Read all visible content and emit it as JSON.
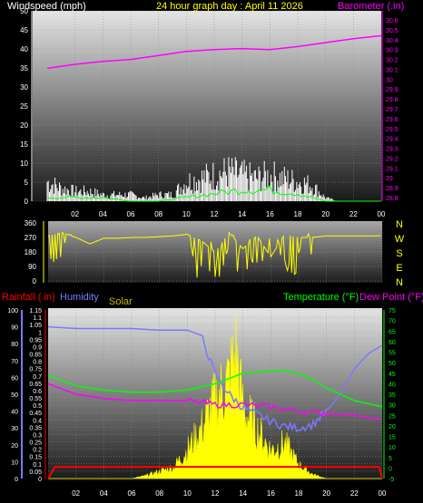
{
  "header": {
    "left_title": "Windspeed (mph)",
    "center_title": "24 hour graph day : April 11 2026",
    "right_title": "Barometer (.in)"
  },
  "colors": {
    "windspeed": "#ffffff",
    "gust": "#cccccc",
    "average": "#00ff00",
    "barometer": "#ff00ff",
    "wind_direction": "#ffff00",
    "rainfall": "#ff0000",
    "humidity": "#7a7aff",
    "solar": "#ffff00",
    "temperature": "#00ff00",
    "dew_point": "#ff00ff",
    "left_axis_humidity": "#7a7aff",
    "rain_axis": "#ff0000",
    "temp_axis": "#00ff00"
  },
  "chart_data": [
    {
      "type": "line",
      "name": "wind-barometer",
      "x_ticks": [
        "02",
        "04",
        "06",
        "08",
        "10",
        "12",
        "14",
        "16",
        "18",
        "20",
        "22",
        "00"
      ],
      "y_left_ticks": [
        "0",
        "5",
        "10",
        "15",
        "20",
        "25",
        "30",
        "35",
        "40",
        "45",
        "50"
      ],
      "y_left_lim": [
        0,
        50
      ],
      "y_right_ticks": [
        "28.8",
        "28.9",
        "29",
        "29.1",
        "29.2",
        "29.3",
        "29.4",
        "29.5",
        "29.6",
        "29.7",
        "29.8",
        "29.9",
        "30",
        "30.1",
        "30.2",
        "30.3",
        "30.4",
        "30.5",
        "30.6"
      ],
      "y_right_lim": [
        28.8,
        30.6
      ],
      "barometer": {
        "x": [
          0,
          2,
          4,
          6,
          8,
          10,
          12,
          14,
          16,
          18,
          20,
          22,
          24
        ],
        "values": [
          30.11,
          30.15,
          30.18,
          30.2,
          30.24,
          30.28,
          30.3,
          30.31,
          30.3,
          30.33,
          30.37,
          30.41,
          30.44
        ]
      },
      "windspeed": {
        "x": [
          0,
          1,
          2,
          3,
          4,
          5,
          6,
          7,
          8,
          9,
          10,
          11,
          12,
          13,
          14,
          15,
          16,
          17,
          18,
          19,
          20,
          21,
          22,
          23,
          24
        ],
        "values": [
          6,
          4,
          3,
          3,
          2,
          2,
          2,
          1,
          2,
          2,
          6,
          7,
          8,
          9,
          8,
          7,
          8,
          7,
          6,
          5,
          1,
          0,
          0,
          0,
          0
        ]
      },
      "average": {
        "x": [
          0,
          2,
          4,
          6,
          8,
          10,
          12,
          14,
          16,
          18,
          20,
          22,
          24
        ],
        "values": [
          1,
          1,
          1,
          0,
          0,
          1,
          2,
          3,
          3,
          2,
          0,
          0,
          0
        ]
      }
    },
    {
      "type": "line",
      "name": "wind-direction",
      "y_ticks": [
        "0",
        "90",
        "180",
        "270",
        "360"
      ],
      "y_lim": [
        0,
        360
      ],
      "right_labels": [
        "N",
        "W",
        "S",
        "E",
        "N"
      ],
      "x": [
        0,
        1,
        2,
        3,
        4,
        5,
        6,
        7,
        8,
        9,
        10,
        11,
        12,
        13,
        14,
        15,
        16,
        17,
        18,
        19,
        20,
        21,
        22,
        23,
        24
      ],
      "values": [
        280,
        300,
        270,
        230,
        265,
        265,
        270,
        270,
        275,
        280,
        290,
        250,
        180,
        300,
        200,
        280,
        150,
        290,
        270,
        270,
        280,
        280,
        280,
        280,
        280
      ]
    },
    {
      "type": "line",
      "name": "rain-humidity-temp",
      "left_title": "Rainfall (.in)",
      "humidity_title": "Humidity",
      "solar_title": "Solar",
      "temp_title": "Temperature (°F)",
      "dew_title": "Dew Point (°F)",
      "humidity_ticks": [
        "0",
        "10",
        "20",
        "30",
        "40",
        "50",
        "60",
        "70",
        "80",
        "90",
        "100"
      ],
      "humidity_lim": [
        0,
        100
      ],
      "rain_ticks": [
        "0",
        "0.05",
        "0.1",
        "0.15",
        "0.2",
        "0.25",
        "0.3",
        "0.35",
        "0.4",
        "0.45",
        "0.5",
        "0.55",
        "0.6",
        "0.65",
        "0.7",
        "0.75",
        "0.8",
        "0.85",
        "0.9",
        "0.95",
        "1",
        "1.05",
        "1.1",
        "1.15"
      ],
      "rain_lim": [
        0,
        1.15
      ],
      "temp_ticks": [
        "-5",
        "0",
        "5",
        "10",
        "15",
        "20",
        "25",
        "30",
        "35",
        "40",
        "45",
        "50",
        "55",
        "60",
        "65",
        "70",
        "75"
      ],
      "temp_lim": [
        -5,
        75
      ],
      "humidity": {
        "x": [
          0,
          2,
          4,
          6,
          8,
          10,
          11,
          12,
          13,
          14,
          15,
          16,
          17,
          18,
          19,
          20,
          21,
          22,
          23,
          24
        ],
        "values": [
          90,
          89,
          89,
          89,
          88,
          88,
          85,
          62,
          50,
          42,
          38,
          34,
          31,
          30,
          32,
          40,
          50,
          65,
          74,
          79
        ]
      },
      "temperature": {
        "x": [
          0,
          2,
          4,
          6,
          8,
          10,
          12,
          14,
          16,
          17,
          18,
          19,
          20,
          21,
          22,
          24
        ],
        "values": [
          44,
          39,
          37,
          36,
          36,
          37,
          40,
          45,
          46,
          46,
          45,
          42,
          38,
          35,
          32,
          29
        ]
      },
      "dew_point": {
        "x": [
          0,
          2,
          4,
          6,
          8,
          10,
          12,
          14,
          16,
          18,
          20,
          22,
          24
        ],
        "values": [
          40,
          35,
          33,
          32,
          32,
          32,
          30,
          30,
          29,
          27,
          26,
          25,
          23
        ]
      },
      "rainfall": {
        "x": [
          0,
          0.5,
          23.8,
          24
        ],
        "values": [
          0,
          0.08,
          0.08,
          0
        ]
      },
      "solar": {
        "x": [
          0,
          6,
          7,
          8,
          9,
          10,
          11,
          12,
          13,
          13.5,
          14,
          15,
          16,
          17,
          18,
          19,
          20,
          24
        ],
        "values": [
          0,
          0,
          0.02,
          0.05,
          0.08,
          0.2,
          0.35,
          0.55,
          0.7,
          0.9,
          0.5,
          0.35,
          0.2,
          0.25,
          0.1,
          0.03,
          0,
          0
        ]
      }
    }
  ]
}
